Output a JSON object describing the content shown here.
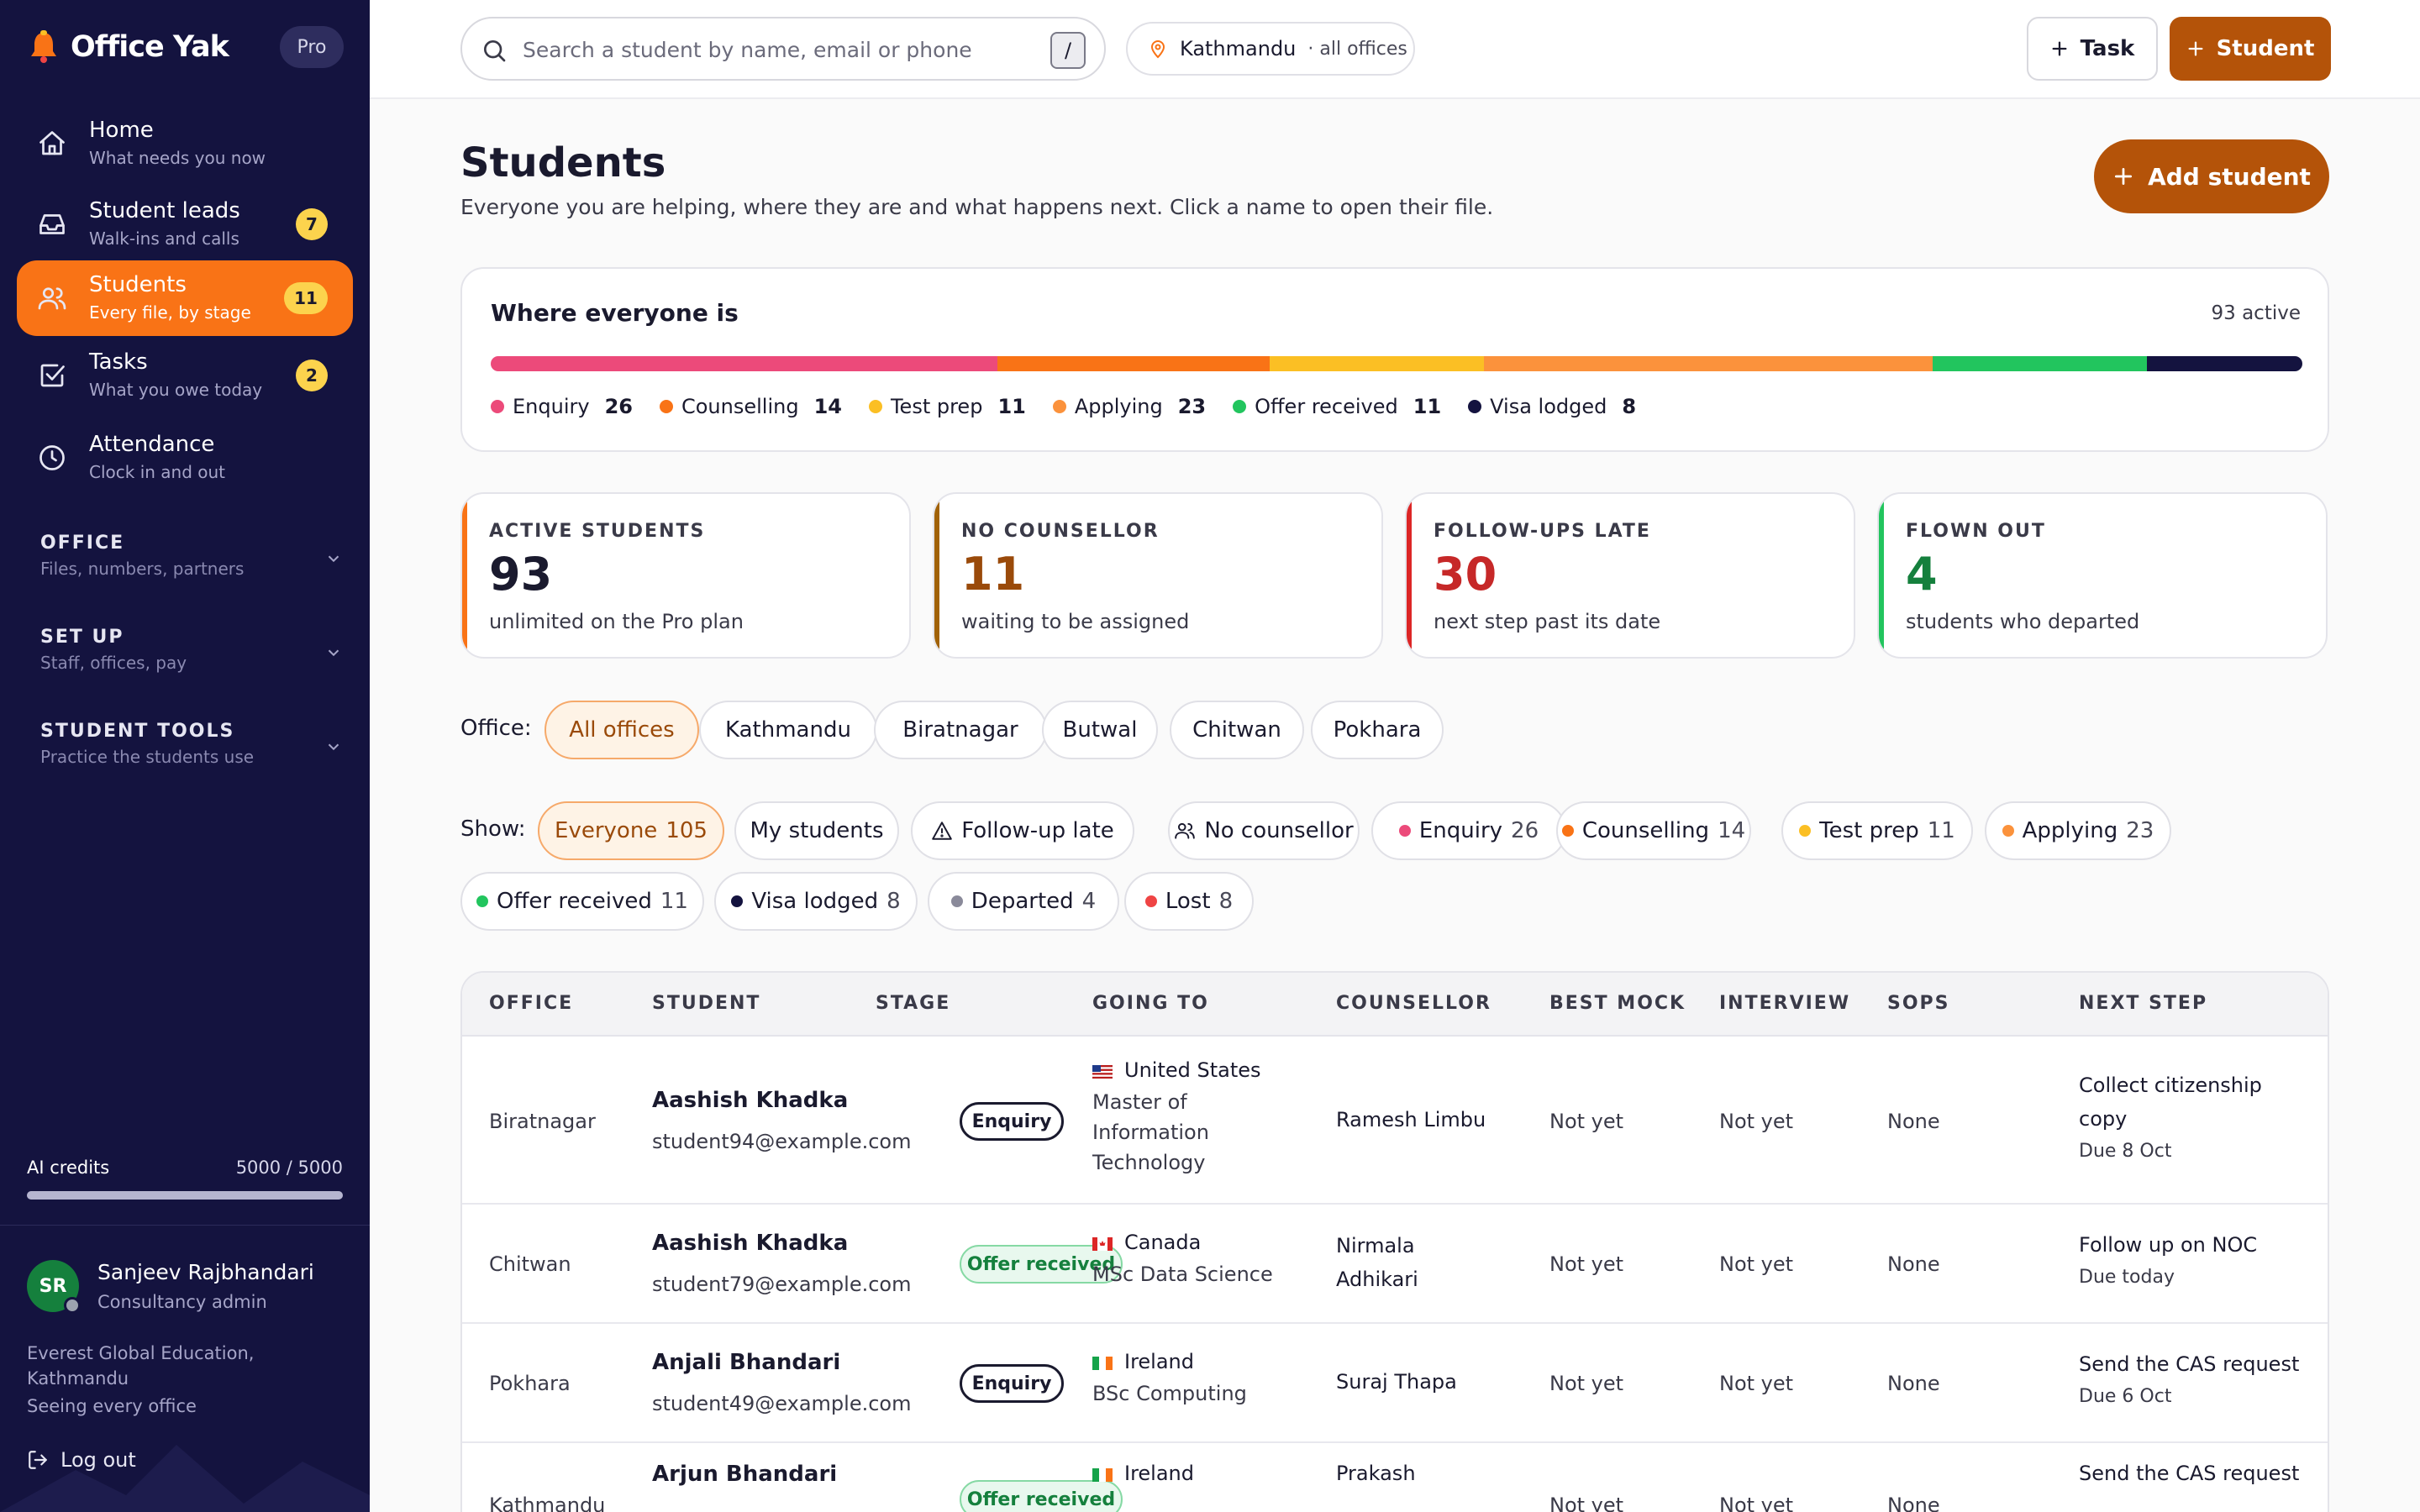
{
  "brand": {
    "name": "Office Yak",
    "plan": "Pro"
  },
  "nav": [
    {
      "label": "Home",
      "sub": "What needs you now",
      "badge": "",
      "icon": "home-icon"
    },
    {
      "label": "Student leads",
      "sub": "Walk-ins and calls",
      "badge": "7",
      "icon": "inbox-icon"
    },
    {
      "label": "Students",
      "sub": "Every file, by stage",
      "badge": "11",
      "icon": "users-icon",
      "active": true
    },
    {
      "label": "Tasks",
      "sub": "What you owe today",
      "badge": "2",
      "icon": "check-square-icon"
    },
    {
      "label": "Attendance",
      "sub": "Clock in and out",
      "badge": "",
      "icon": "clock-icon"
    }
  ],
  "sections": [
    {
      "title": "OFFICE",
      "sub": "Files, numbers, partners"
    },
    {
      "title": "SET UP",
      "sub": "Staff, offices, pay"
    },
    {
      "title": "STUDENT TOOLS",
      "sub": "Practice the students use"
    }
  ],
  "credits": {
    "label": "AI credits",
    "value": "5000 / 5000",
    "fraction": 1.0
  },
  "user": {
    "initials": "SR",
    "name": "Sanjeev Rajbhandari",
    "role": "Consultancy admin",
    "org": "Everest Global Education, Kathmandu",
    "scope": "Seeing every office",
    "logout": "Log out"
  },
  "topbar": {
    "search_placeholder": "Search a student by name, email or phone",
    "search_shortcut": "/",
    "location": "Kathmandu",
    "location_sub": "· all offices",
    "task_button": "Task",
    "student_button": "Student"
  },
  "page": {
    "title": "Students",
    "subtitle": "Everyone you are helping, where they are and what happens next. Click a name to open their file.",
    "add_button": "Add student"
  },
  "stages_card": {
    "title": "Where everyone is",
    "count": "93 active",
    "segments": [
      {
        "name": "Enquiry",
        "value": 26,
        "color": "#ec4a7a"
      },
      {
        "name": "Counselling",
        "value": 14,
        "color": "#f97316"
      },
      {
        "name": "Test prep",
        "value": 11,
        "color": "#fbbf24"
      },
      {
        "name": "Applying",
        "value": 23,
        "color": "#fb923c"
      },
      {
        "name": "Offer received",
        "value": 11,
        "color": "#22c55e"
      },
      {
        "name": "Visa lodged",
        "value": 8,
        "color": "#14133f"
      }
    ]
  },
  "stats": [
    {
      "label": "ACTIVE STUDENTS",
      "value": "93",
      "sub": "unlimited on the Pro plan",
      "accent": "#f97316",
      "color": "#1a1a2e"
    },
    {
      "label": "NO COUNSELLOR",
      "value": "11",
      "sub": "waiting to be assigned",
      "accent": "#a16207",
      "color": "#9a4a0a"
    },
    {
      "label": "FOLLOW-UPS LATE",
      "value": "30",
      "sub": "next step past its date",
      "accent": "#dc2626",
      "color": "#c62828"
    },
    {
      "label": "FLOWN OUT",
      "value": "4",
      "sub": "students who departed",
      "accent": "#22c55e",
      "color": "#15803d"
    }
  ],
  "office_filter": {
    "label": "Office:",
    "options": [
      "All offices",
      "Kathmandu",
      "Biratnagar",
      "Butwal",
      "Chitwan",
      "Pokhara"
    ],
    "selected": 0
  },
  "show_filter": {
    "label": "Show:",
    "options": [
      {
        "label": "Everyone",
        "count": "105",
        "selected": true
      },
      {
        "label": "My students",
        "count": ""
      },
      {
        "label": "Follow-up late",
        "count": "",
        "icon": "warning-icon"
      },
      {
        "label": "No counsellor",
        "count": "",
        "icon": "users-icon"
      },
      {
        "label": "Enquiry",
        "count": "26",
        "dot": "#ec4a7a"
      },
      {
        "label": "Counselling",
        "count": "14",
        "dot": "#f97316"
      },
      {
        "label": "Test prep",
        "count": "11",
        "dot": "#fbbf24"
      },
      {
        "label": "Applying",
        "count": "23",
        "dot": "#fb923c"
      },
      {
        "label": "Offer received",
        "count": "11",
        "dot": "#22c55e"
      },
      {
        "label": "Visa lodged",
        "count": "8",
        "dot": "#14133f"
      },
      {
        "label": "Departed",
        "count": "4",
        "dot": "#8a8a9a"
      },
      {
        "label": "Lost",
        "count": "8",
        "dot": "#ef4444"
      }
    ]
  },
  "table": {
    "columns": [
      "OFFICE",
      "STUDENT",
      "STAGE",
      "GOING TO",
      "COUNSELLOR",
      "BEST MOCK",
      "INTERVIEW",
      "SOPS",
      "NEXT STEP"
    ],
    "rows": [
      {
        "office": "Biratnagar",
        "name": "Aashish Khadka",
        "email": "student94@example.com",
        "stage": "Enquiry",
        "country": "United States",
        "flag": "us-flag",
        "program": [
          "Master of",
          "Information",
          "Technology"
        ],
        "counsellor": [
          "Ramesh Limbu"
        ],
        "mock": "Not yet",
        "interview": "Not yet",
        "sops": "None",
        "next": [
          "Collect citizenship",
          "copy"
        ],
        "due": "Due 8 Oct"
      },
      {
        "office": "Chitwan",
        "name": "Aashish Khadka",
        "email": "student79@example.com",
        "stage": "Offer received",
        "country": "Canada",
        "flag": "ca-flag",
        "program": [
          "MSc Data Science"
        ],
        "counsellor": [
          "Nirmala",
          "Adhikari"
        ],
        "mock": "Not yet",
        "interview": "Not yet",
        "sops": "None",
        "next": [
          "Follow up on NOC"
        ],
        "due": "Due today"
      },
      {
        "office": "Pokhara",
        "name": "Anjali Bhandari",
        "email": "student49@example.com",
        "stage": "Enquiry",
        "country": "Ireland",
        "flag": "ie-flag",
        "program": [
          "BSc Computing"
        ],
        "counsellor": [
          "Suraj Thapa"
        ],
        "mock": "Not yet",
        "interview": "Not yet",
        "sops": "None",
        "next": [
          "Send the CAS request"
        ],
        "due": "Due 6 Oct"
      },
      {
        "office": "Kathmandu",
        "name": "Arjun Bhandari",
        "email": "",
        "stage": "Offer received",
        "country": "Ireland",
        "flag": "ie-flag",
        "program": [],
        "counsellor": [
          "Prakash"
        ],
        "mock": "Not yet",
        "interview": "Not yet",
        "sops": "None",
        "next": [
          "Send the CAS request"
        ],
        "due": ""
      }
    ]
  }
}
